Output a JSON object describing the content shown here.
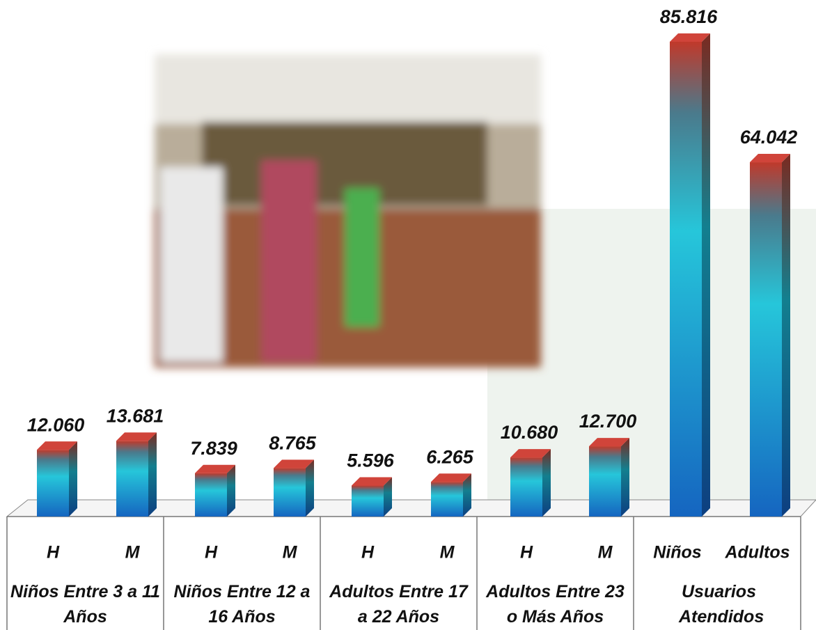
{
  "chart_data": {
    "type": "bar",
    "categories": [
      "H",
      "M",
      "H",
      "M",
      "H",
      "M",
      "H",
      "M",
      "Niños",
      "Adultos"
    ],
    "values": [
      12060,
      13681,
      7839,
      8765,
      5596,
      6265,
      10680,
      12700,
      85816,
      64042
    ],
    "value_labels": [
      "12.060",
      "13.681",
      "7.839",
      "8.765",
      "5.596",
      "6.265",
      "10.680",
      "12.700",
      "85.816",
      "64.042"
    ],
    "groups": [
      "Niños Entre 3 a 11 Años",
      "Niños Entre 12 a 16 Años",
      "Adultos Entre 17 a 22 Años",
      "Adultos Entre 23 o Más Años",
      "Usuarios Atendidos"
    ]
  }
}
